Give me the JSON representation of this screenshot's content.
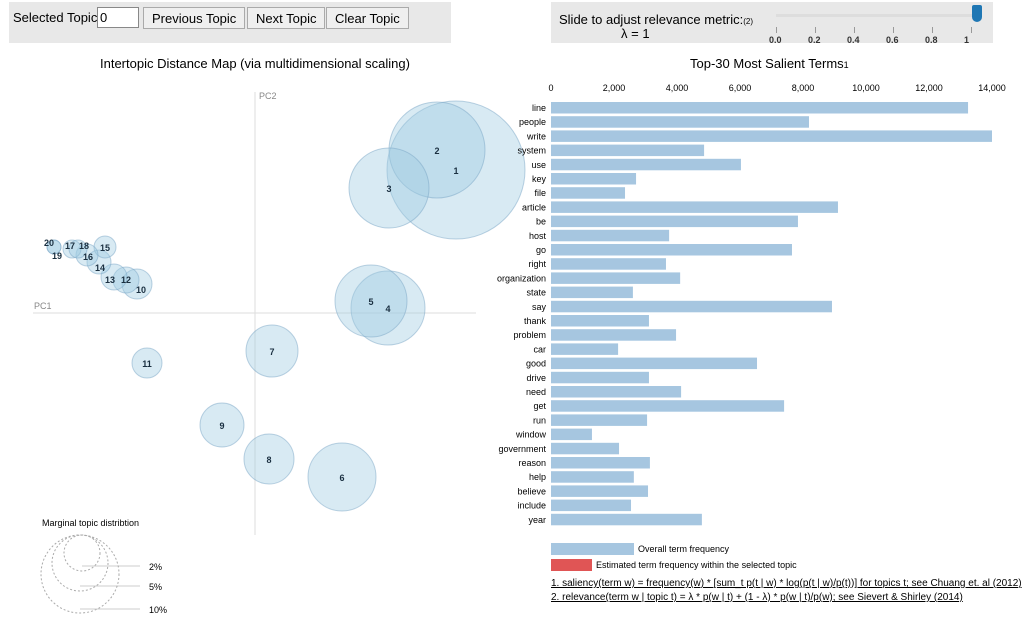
{
  "controls": {
    "selected_topic_label": "Selected Topic:",
    "selected_topic_value": "0",
    "previous": "Previous Topic",
    "next": "Next Topic",
    "clear": "Clear Topic",
    "slider_label": "Slide to adjust relevance metric:",
    "slider_note": "(2)",
    "lambda_text": "λ = 1",
    "lambda_value": 1,
    "slider_ticks": [
      "0.0",
      "0.2",
      "0.4",
      "0.6",
      "0.8",
      "1"
    ]
  },
  "colors": {
    "circle": "#9ecae1",
    "bar_overall": "#a6c6e0",
    "bar_topic": "#e05555",
    "accent": "#1f77b4"
  },
  "chart_data": [
    {
      "type": "scatter",
      "title": "Intertopic Distance Map (via multidimensional scaling)",
      "xlabel": "PC1",
      "ylabel": "PC2",
      "topics": [
        "1",
        "2",
        "3",
        "4",
        "5",
        "6",
        "7",
        "8",
        "9",
        "10",
        "11",
        "12",
        "13",
        "14",
        "15",
        "16",
        "17",
        "18",
        "19",
        "20"
      ],
      "legend": {
        "title": "Marginal topic distribtion",
        "sizes": [
          "2%",
          "5%",
          "10%"
        ]
      }
    },
    {
      "type": "bar",
      "orientation": "horizontal",
      "title": "Top-30 Most Salient Terms",
      "title_note": "1",
      "xlim": [
        0,
        14000
      ],
      "xticks": [
        "0",
        "2,000",
        "4,000",
        "6,000",
        "8,000",
        "10,000",
        "12,000",
        "14,000"
      ],
      "categories": [
        "line",
        "people",
        "write",
        "system",
        "use",
        "key",
        "file",
        "article",
        "be",
        "host",
        "go",
        "right",
        "organization",
        "state",
        "say",
        "thank",
        "problem",
        "car",
        "good",
        "drive",
        "need",
        "get",
        "run",
        "window",
        "government",
        "reason",
        "help",
        "believe",
        "include",
        "year"
      ],
      "series": [
        {
          "name": "Overall term frequency",
          "values": [
            13240,
            8190,
            14000,
            4860,
            6030,
            2700,
            2350,
            9110,
            7840,
            3750,
            7650,
            3650,
            4100,
            2600,
            8920,
            3110,
            3970,
            2130,
            6540,
            3110,
            4130,
            7400,
            3050,
            1300,
            2160,
            3140,
            2630,
            3080,
            2540,
            4790
          ]
        }
      ],
      "legend": [
        "Overall term frequency",
        "Estimated term frequency within the selected topic"
      ]
    }
  ],
  "footnotes": [
    "1. saliency(term w) = frequency(w) * [sum_t p(t | w) * log(p(t | w)/p(t))] for topics t; see Chuang et. al (2012)",
    "2. relevance(term w | topic t) = λ * p(w | t) + (1 - λ) * p(w | t)/p(w); see Sievert & Shirley (2014)"
  ]
}
